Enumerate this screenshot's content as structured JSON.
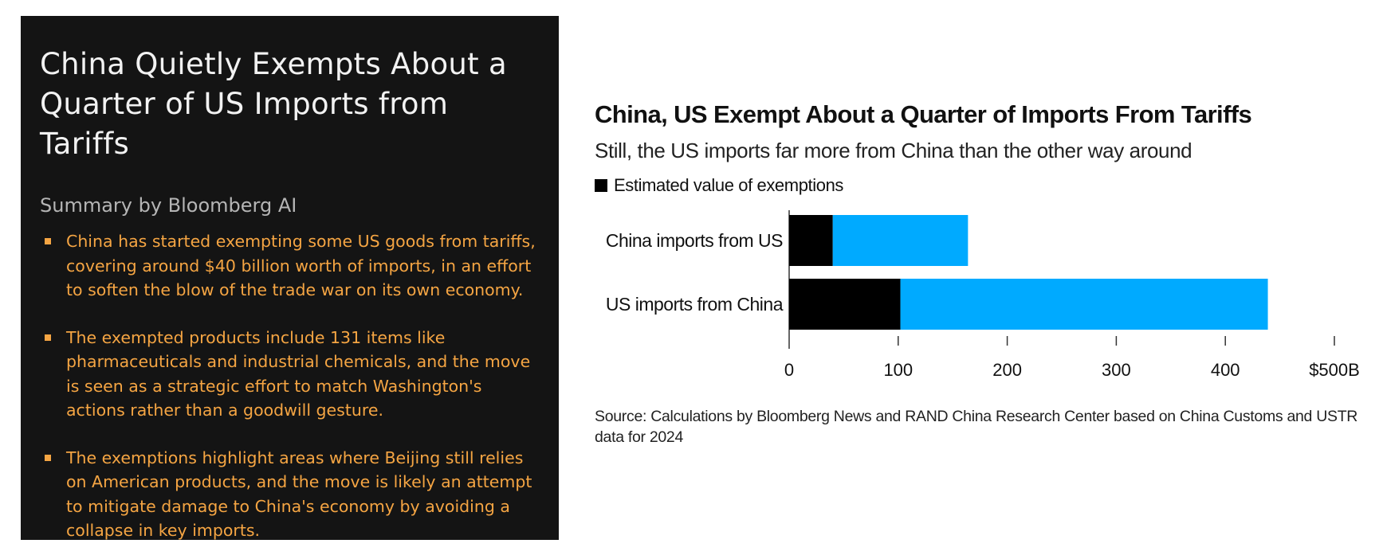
{
  "summary": {
    "title": "China Quietly Exempts About a Quarter of US Imports from Tariffs",
    "subtitle": "Summary by Bloomberg AI",
    "bullets": [
      "China has started exempting some US goods from tariffs, covering around $40 billion worth of imports, in an effort to soften the blow of the trade war on its own economy.",
      "The exempted products include 131 items like pharmaceuticals and industrial chemicals, and the move is seen as a strategic effort to match Washington's actions rather than a goodwill gesture.",
      "The exemptions highlight areas where Beijing still relies on American products, and the move is likely an attempt to mitigate damage to China's economy by avoiding a collapse in key imports."
    ],
    "colors": {
      "background": "#141414",
      "title": "#f2f2f2",
      "subtitle": "#b5b5b5",
      "bullet_text": "#f5a543"
    }
  },
  "chart_data": {
    "type": "bar",
    "orientation": "horizontal",
    "stacked": true,
    "title": "China, US Exempt About a Quarter of Imports From Tariffs",
    "subtitle": "Still, the US imports far more from China than the other way around",
    "categories": [
      "China imports from US",
      "US imports from China"
    ],
    "series": [
      {
        "name": "Estimated value of exemptions",
        "color": "#000000",
        "values": [
          40,
          102
        ]
      },
      {
        "color": "#00aaff",
        "values": [
          124,
          337
        ]
      }
    ],
    "totals": [
      164,
      439
    ],
    "xlim": [
      0,
      500
    ],
    "xticks": [
      0,
      100,
      200,
      300,
      400,
      500
    ],
    "xtick_labels": [
      "0",
      "100",
      "200",
      "300",
      "400",
      "$500B"
    ],
    "legend": "top-left",
    "grid": false,
    "source": "Source: Calculations by Bloomberg News and RAND China Research Center based on China Customs and USTR data for 2024"
  }
}
